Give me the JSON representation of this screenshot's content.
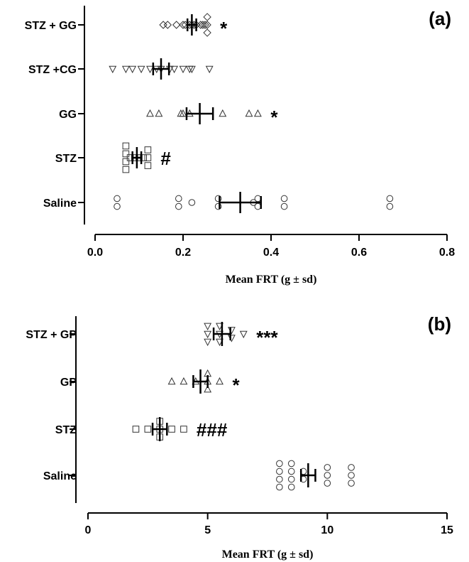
{
  "chart_data": [
    {
      "type": "scatter",
      "panel_label": "(a)",
      "xlabel": "Mean FRT (g ± sd)",
      "xlim": [
        0,
        0.8
      ],
      "xticks": [
        "0.0",
        "0.2",
        "0.4",
        "0.6",
        "0.8"
      ],
      "grid": false,
      "groups": [
        {
          "name": "STZ + GG",
          "marker": "diamond",
          "points": [
            0.155,
            0.165,
            0.185,
            0.2,
            0.205,
            0.215,
            0.22,
            0.225,
            0.23,
            0.24,
            0.245,
            0.25,
            0.255,
            0.255,
            0.255
          ],
          "mean": 0.22,
          "sd": 0.01,
          "significance": "*"
        },
        {
          "name": "STZ +CG",
          "marker": "triangle-down",
          "points": [
            0.04,
            0.07,
            0.085,
            0.105,
            0.125,
            0.14,
            0.15,
            0.17,
            0.18,
            0.2,
            0.215,
            0.22,
            0.26
          ],
          "mean": 0.15,
          "sd": 0.018,
          "significance": ""
        },
        {
          "name": "GG",
          "marker": "triangle-up",
          "points": [
            0.125,
            0.145,
            0.195,
            0.2,
            0.215,
            0.29,
            0.35,
            0.37
          ],
          "mean": 0.238,
          "sd": 0.03,
          "significance": "*"
        },
        {
          "name": "STZ",
          "marker": "square",
          "points": [
            0.07,
            0.07,
            0.07,
            0.07,
            0.08,
            0.09,
            0.1,
            0.11,
            0.12,
            0.12,
            0.12
          ],
          "mean": 0.095,
          "sd": 0.01,
          "significance": "#"
        },
        {
          "name": "Saline",
          "marker": "circle",
          "points": [
            0.05,
            0.05,
            0.19,
            0.19,
            0.22,
            0.28,
            0.28,
            0.36,
            0.37,
            0.37,
            0.43,
            0.43,
            0.67,
            0.67
          ],
          "mean": 0.33,
          "sd": 0.047,
          "significance": ""
        }
      ]
    },
    {
      "type": "scatter",
      "panel_label": "(b)",
      "xlabel": "Mean FRT (g ± sd)",
      "xlim": [
        0,
        15
      ],
      "xticks": [
        "0",
        "5",
        "10",
        "15"
      ],
      "grid": false,
      "groups": [
        {
          "name": "STZ + GP",
          "marker": "triangle-down",
          "points": [
            5,
            5,
            5,
            5.5,
            5.5,
            5.5,
            6,
            6,
            6.5
          ],
          "mean": 5.6,
          "sd": 0.35,
          "significance": "***"
        },
        {
          "name": "GP",
          "marker": "triangle-up",
          "points": [
            3.5,
            4,
            4.5,
            5,
            5,
            5,
            5.5
          ],
          "mean": 4.7,
          "sd": 0.3,
          "significance": "*"
        },
        {
          "name": "STZ",
          "marker": "square",
          "points": [
            2,
            2.5,
            3,
            3,
            3,
            3.5,
            4
          ],
          "mean": 3.0,
          "sd": 0.3,
          "significance": "###"
        },
        {
          "name": "Saline",
          "marker": "circle",
          "points": [
            8,
            8,
            8,
            8,
            8.5,
            8.5,
            8.5,
            8.5,
            9,
            9,
            10,
            10,
            10,
            11,
            11,
            11
          ],
          "mean": 9.2,
          "sd": 0.3,
          "significance": ""
        }
      ]
    }
  ]
}
